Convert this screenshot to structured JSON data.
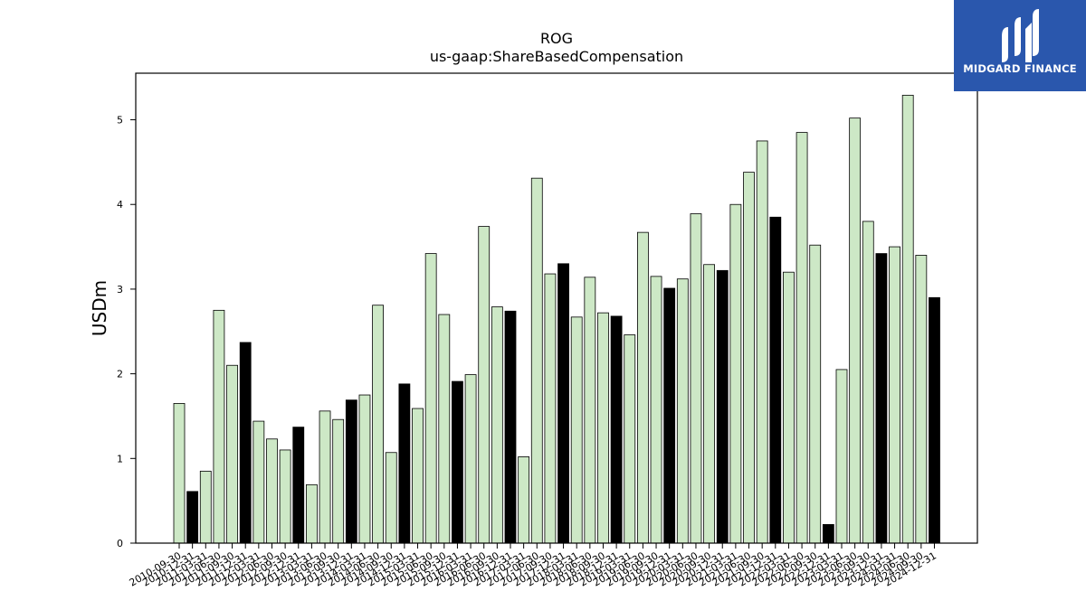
{
  "logo": {
    "text": "MIDGARD FINANCE",
    "background": "#2a57ad"
  },
  "chart_data": {
    "type": "bar",
    "title": "ROG",
    "subtitle": "us-gaap:ShareBasedCompensation",
    "xlabel": "",
    "ylabel": "USDm",
    "ylim": [
      0,
      5.55
    ],
    "yticks": [
      "0",
      "1",
      "2",
      "3",
      "4",
      "5"
    ],
    "grid": false,
    "colors": {
      "quarter": "#cde8c6",
      "annual": "#000000",
      "edge": "#000000"
    },
    "categories": [
      "2010-09-30",
      "2010-12-31",
      "2011-03-31",
      "2011-06-30",
      "2011-09-30",
      "2011-12-31",
      "2012-03-31",
      "2012-06-30",
      "2012-09-30",
      "2012-12-31",
      "2013-03-31",
      "2013-06-30",
      "2013-09-30",
      "2013-12-31",
      "2014-03-31",
      "2014-06-30",
      "2014-09-30",
      "2014-12-31",
      "2015-03-31",
      "2015-06-30",
      "2015-09-30",
      "2015-12-31",
      "2016-03-31",
      "2016-06-30",
      "2016-09-30",
      "2016-12-31",
      "2017-03-31",
      "2017-06-30",
      "2017-09-30",
      "2017-12-31",
      "2018-03-31",
      "2018-06-30",
      "2018-09-30",
      "2018-12-31",
      "2019-03-31",
      "2019-06-30",
      "2019-09-30",
      "2019-12-31",
      "2020-03-31",
      "2020-06-30",
      "2020-09-30",
      "2020-12-31",
      "2021-03-31",
      "2021-06-30",
      "2021-09-30",
      "2021-12-31",
      "2022-03-31",
      "2022-06-30",
      "2022-09-30",
      "2022-12-31",
      "2023-03-31",
      "2023-06-30",
      "2023-09-30",
      "2023-12-31",
      "2024-03-31",
      "2024-06-30",
      "2024-09-30",
      "2024-12-31"
    ],
    "values": [
      1.65,
      0.61,
      0.85,
      2.75,
      2.1,
      2.37,
      1.44,
      1.23,
      1.1,
      1.37,
      0.69,
      1.56,
      1.46,
      1.69,
      1.75,
      2.81,
      1.07,
      1.88,
      1.59,
      3.42,
      2.7,
      1.91,
      1.99,
      3.74,
      2.79,
      2.74,
      1.02,
      4.31,
      3.18,
      3.3,
      2.67,
      3.14,
      2.72,
      2.68,
      2.46,
      3.67,
      3.15,
      3.01,
      3.12,
      3.89,
      3.29,
      3.22,
      4.0,
      4.38,
      4.75,
      3.85,
      3.2,
      4.85,
      3.52,
      0.22,
      2.05,
      5.02,
      3.8,
      3.42,
      3.5,
      5.29,
      3.4,
      2.9
    ],
    "annual": [
      false,
      true,
      false,
      false,
      false,
      true,
      false,
      false,
      false,
      true,
      false,
      false,
      false,
      true,
      false,
      false,
      false,
      true,
      false,
      false,
      false,
      true,
      false,
      false,
      false,
      true,
      false,
      false,
      false,
      true,
      false,
      false,
      false,
      true,
      false,
      false,
      false,
      true,
      false,
      false,
      false,
      true,
      false,
      false,
      false,
      true,
      false,
      false,
      false,
      true,
      false,
      false,
      false,
      true,
      false,
      false,
      false,
      true
    ]
  }
}
